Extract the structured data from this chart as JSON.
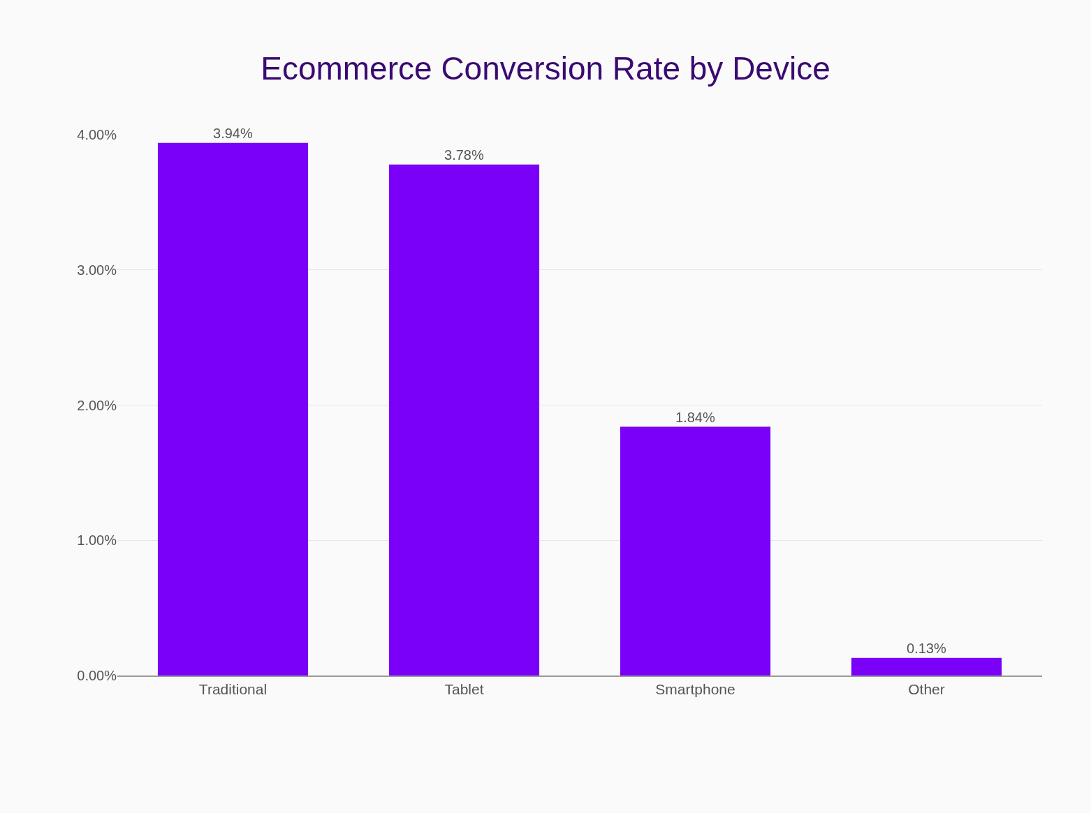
{
  "chart_data": {
    "type": "bar",
    "title": "Ecommerce Conversion Rate by Device",
    "categories": [
      "Traditional",
      "Tablet",
      "Smartphone",
      "Other"
    ],
    "values": [
      3.94,
      3.78,
      1.84,
      0.13
    ],
    "value_labels": [
      "3.94%",
      "3.78%",
      "1.84%",
      "0.13%"
    ],
    "color": "#7a00f7",
    "ylim": [
      0,
      4
    ],
    "yticks": [
      {
        "value": 0,
        "label": "0.00%"
      },
      {
        "value": 1,
        "label": "1.00%"
      },
      {
        "value": 2,
        "label": "2.00%"
      },
      {
        "value": 3,
        "label": "3.00%"
      },
      {
        "value": 4,
        "label": "4.00%"
      }
    ],
    "grid": "y",
    "legend": false
  }
}
